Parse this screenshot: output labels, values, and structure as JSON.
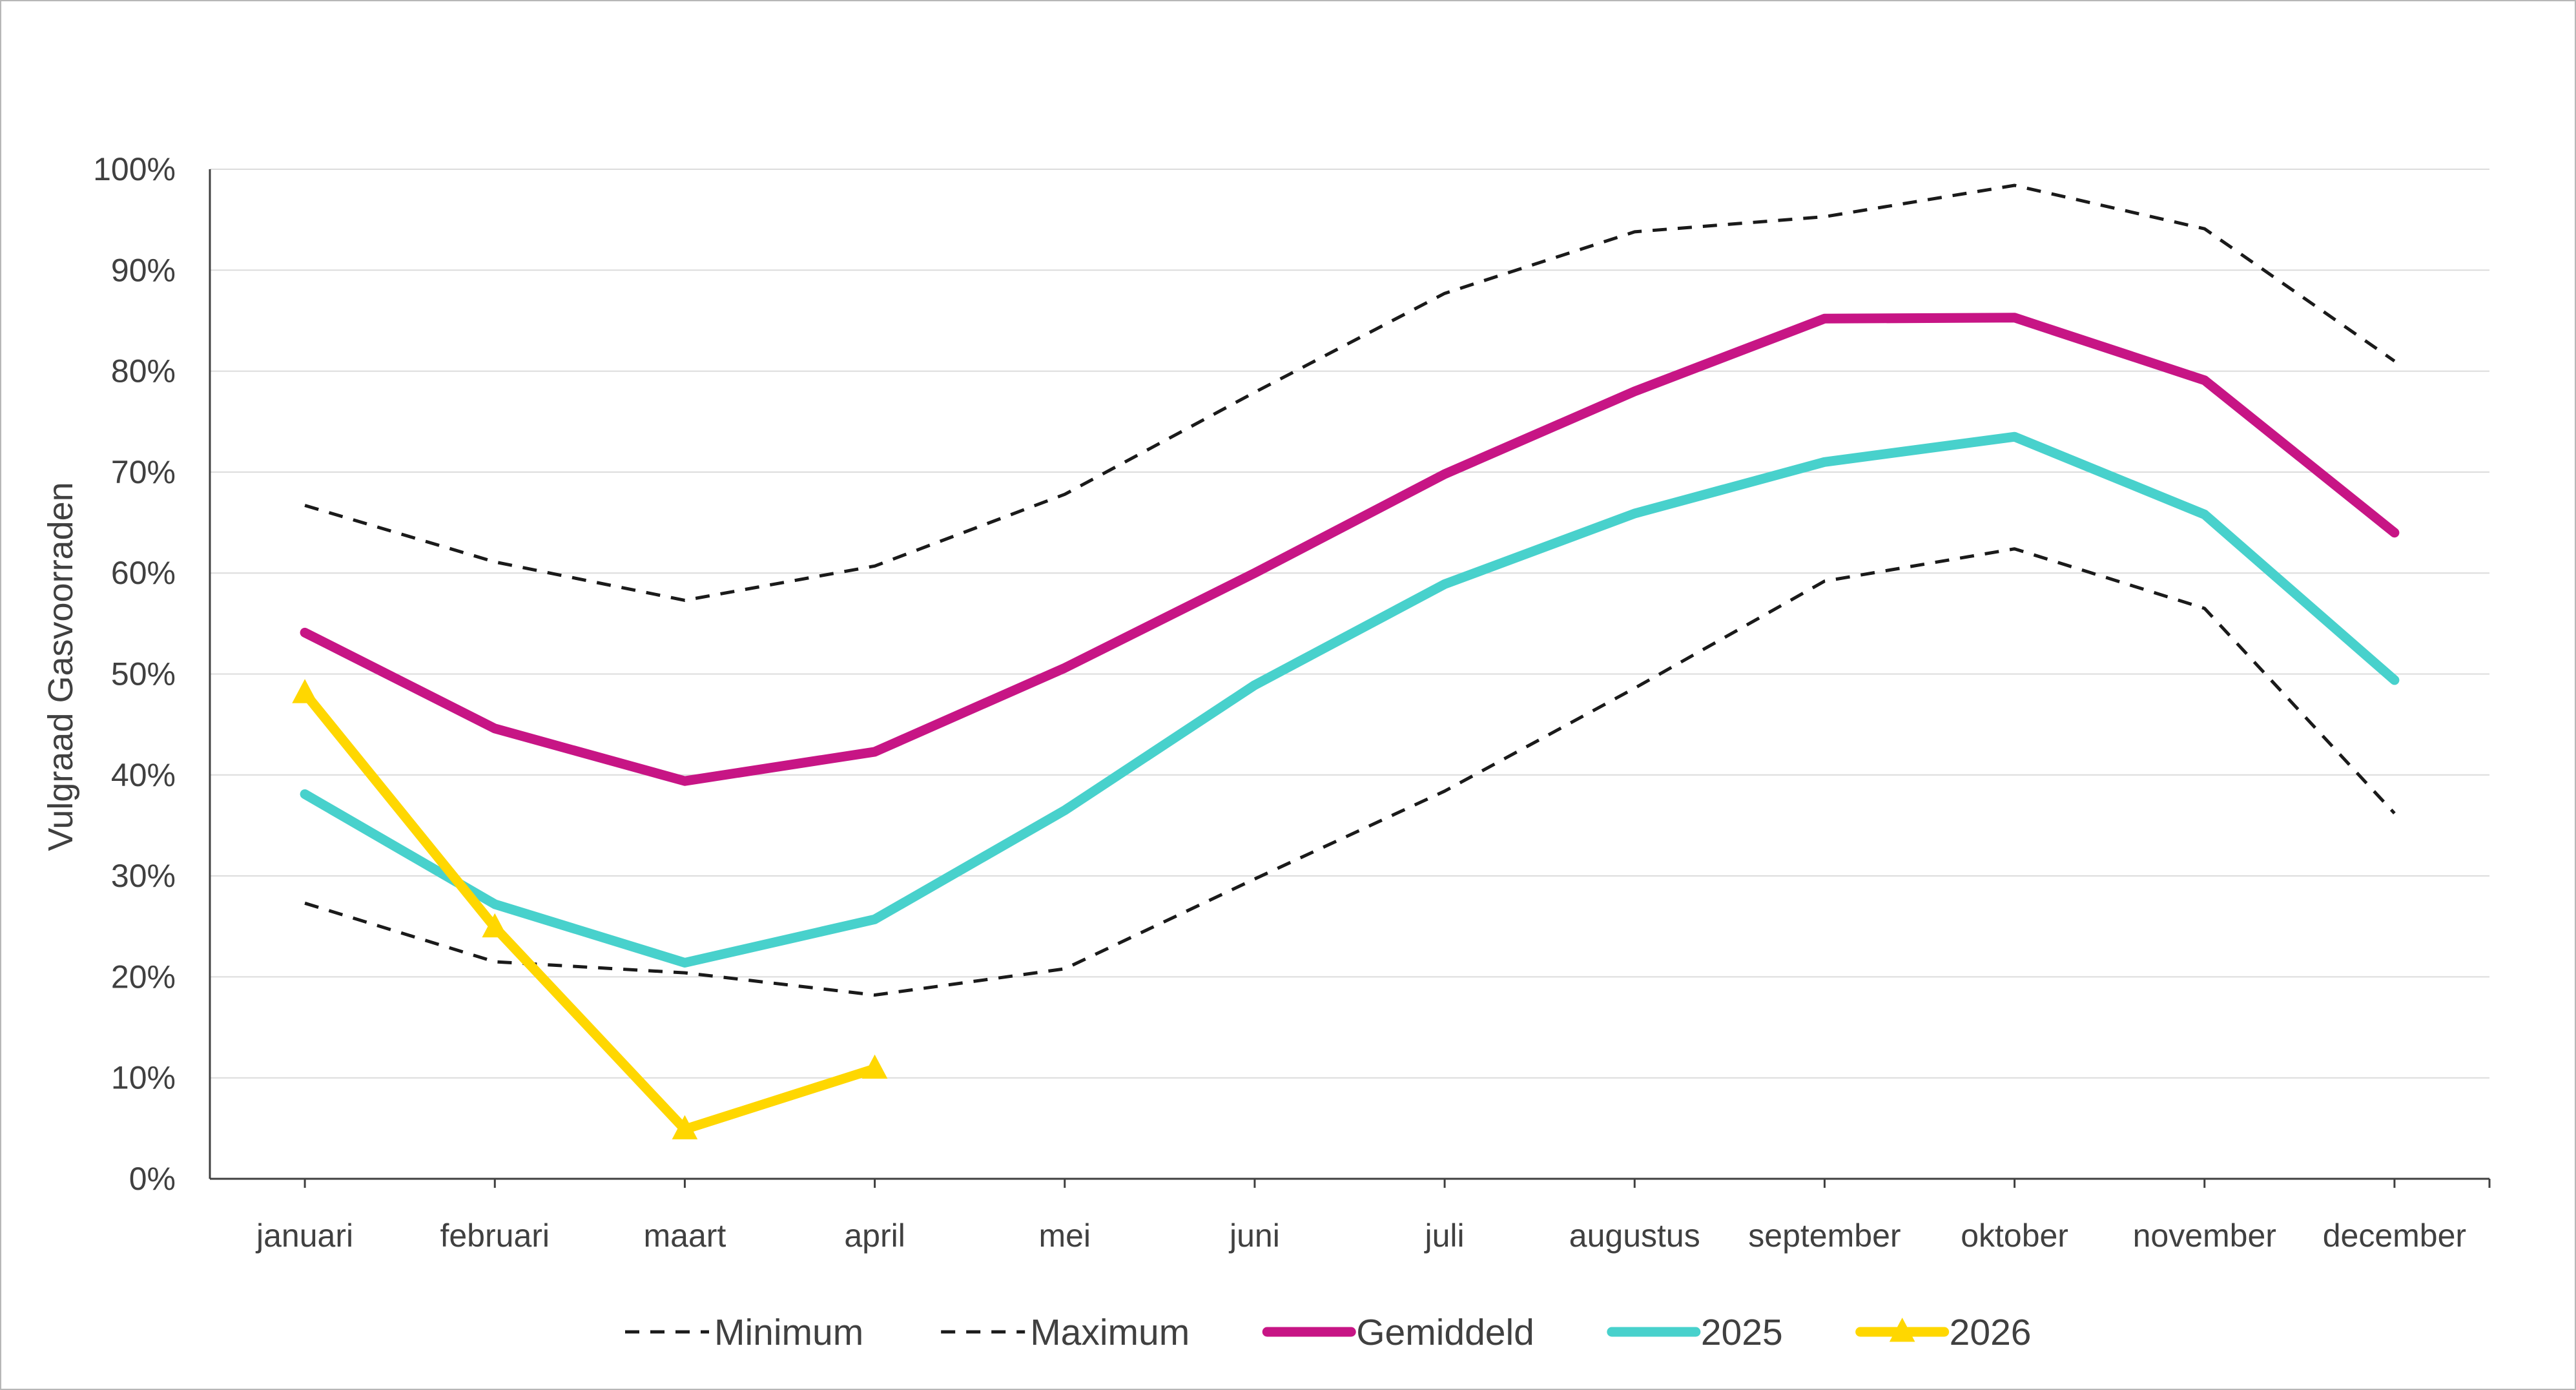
{
  "chart_data": {
    "type": "line",
    "title": "",
    "xlabel": "",
    "ylabel": "Vulgraad Gasvoorraden",
    "ylim": [
      0,
      100
    ],
    "yticks": [
      "0%",
      "10%",
      "20%",
      "30%",
      "40%",
      "50%",
      "60%",
      "70%",
      "80%",
      "90%",
      "100%"
    ],
    "grid": "horizontal",
    "legend_position": "bottom",
    "categories": [
      "januari",
      "februari",
      "maart",
      "april",
      "mei",
      "juni",
      "juli",
      "augustus",
      "september",
      "oktober",
      "november",
      "december"
    ],
    "series": [
      {
        "name": "Minimum",
        "color": "#1a1a1a",
        "style": "dashed",
        "values": [
          27.3,
          21.5,
          20.4,
          18.2,
          20.8,
          29.7,
          38.4,
          48.6,
          59.2,
          62.4,
          56.5,
          36.2
        ]
      },
      {
        "name": "Maximum",
        "color": "#1a1a1a",
        "style": "dashed",
        "values": [
          66.7,
          61.1,
          57.3,
          60.7,
          67.8,
          77.9,
          87.7,
          93.8,
          95.3,
          98.4,
          94.1,
          81.0
        ]
      },
      {
        "name": "Gemiddeld",
        "color": "#c71585",
        "style": "solid",
        "values": [
          54.1,
          44.6,
          39.4,
          42.3,
          50.6,
          60.0,
          69.8,
          78.0,
          85.2,
          85.3,
          79.1,
          64.0
        ]
      },
      {
        "name": "2025",
        "color": "#48d1cc",
        "style": "solid",
        "values": [
          38.1,
          27.2,
          21.4,
          25.7,
          36.5,
          48.9,
          58.9,
          65.9,
          71.0,
          73.5,
          65.8,
          49.4
        ]
      },
      {
        "name": "2026",
        "color": "#ffd700",
        "style": "solid",
        "marker": "triangle",
        "values": [
          48.1,
          24.9,
          4.9,
          10.9,
          null,
          null,
          null,
          null,
          null,
          null,
          null,
          null
        ]
      }
    ]
  }
}
